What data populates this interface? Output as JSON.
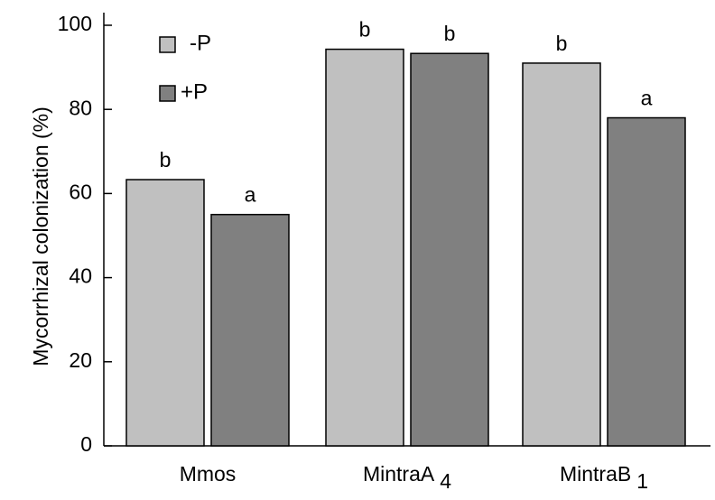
{
  "chart_data": {
    "type": "bar",
    "title": "",
    "xlabel": "",
    "ylabel": "Mycorrhizal colonization (%)",
    "ylim": [
      0,
      100
    ],
    "yticks": [
      0,
      20,
      40,
      60,
      80,
      100
    ],
    "categories": [
      {
        "name": "Mmos",
        "subscript": ""
      },
      {
        "name": "MintraA",
        "subscript": "4"
      },
      {
        "name": "MintraB",
        "subscript": "1"
      }
    ],
    "series": [
      {
        "name": "-P",
        "color": "#c0c0c0",
        "values": [
          63.3,
          94.3,
          91.0
        ],
        "letters": [
          "b",
          "b",
          "b"
        ]
      },
      {
        "name": "+P",
        "color": "#808080",
        "values": [
          55.0,
          93.3,
          78.0
        ],
        "letters": [
          "a",
          "b",
          "a"
        ]
      }
    ],
    "legend_position": "top-left",
    "grid": false
  }
}
